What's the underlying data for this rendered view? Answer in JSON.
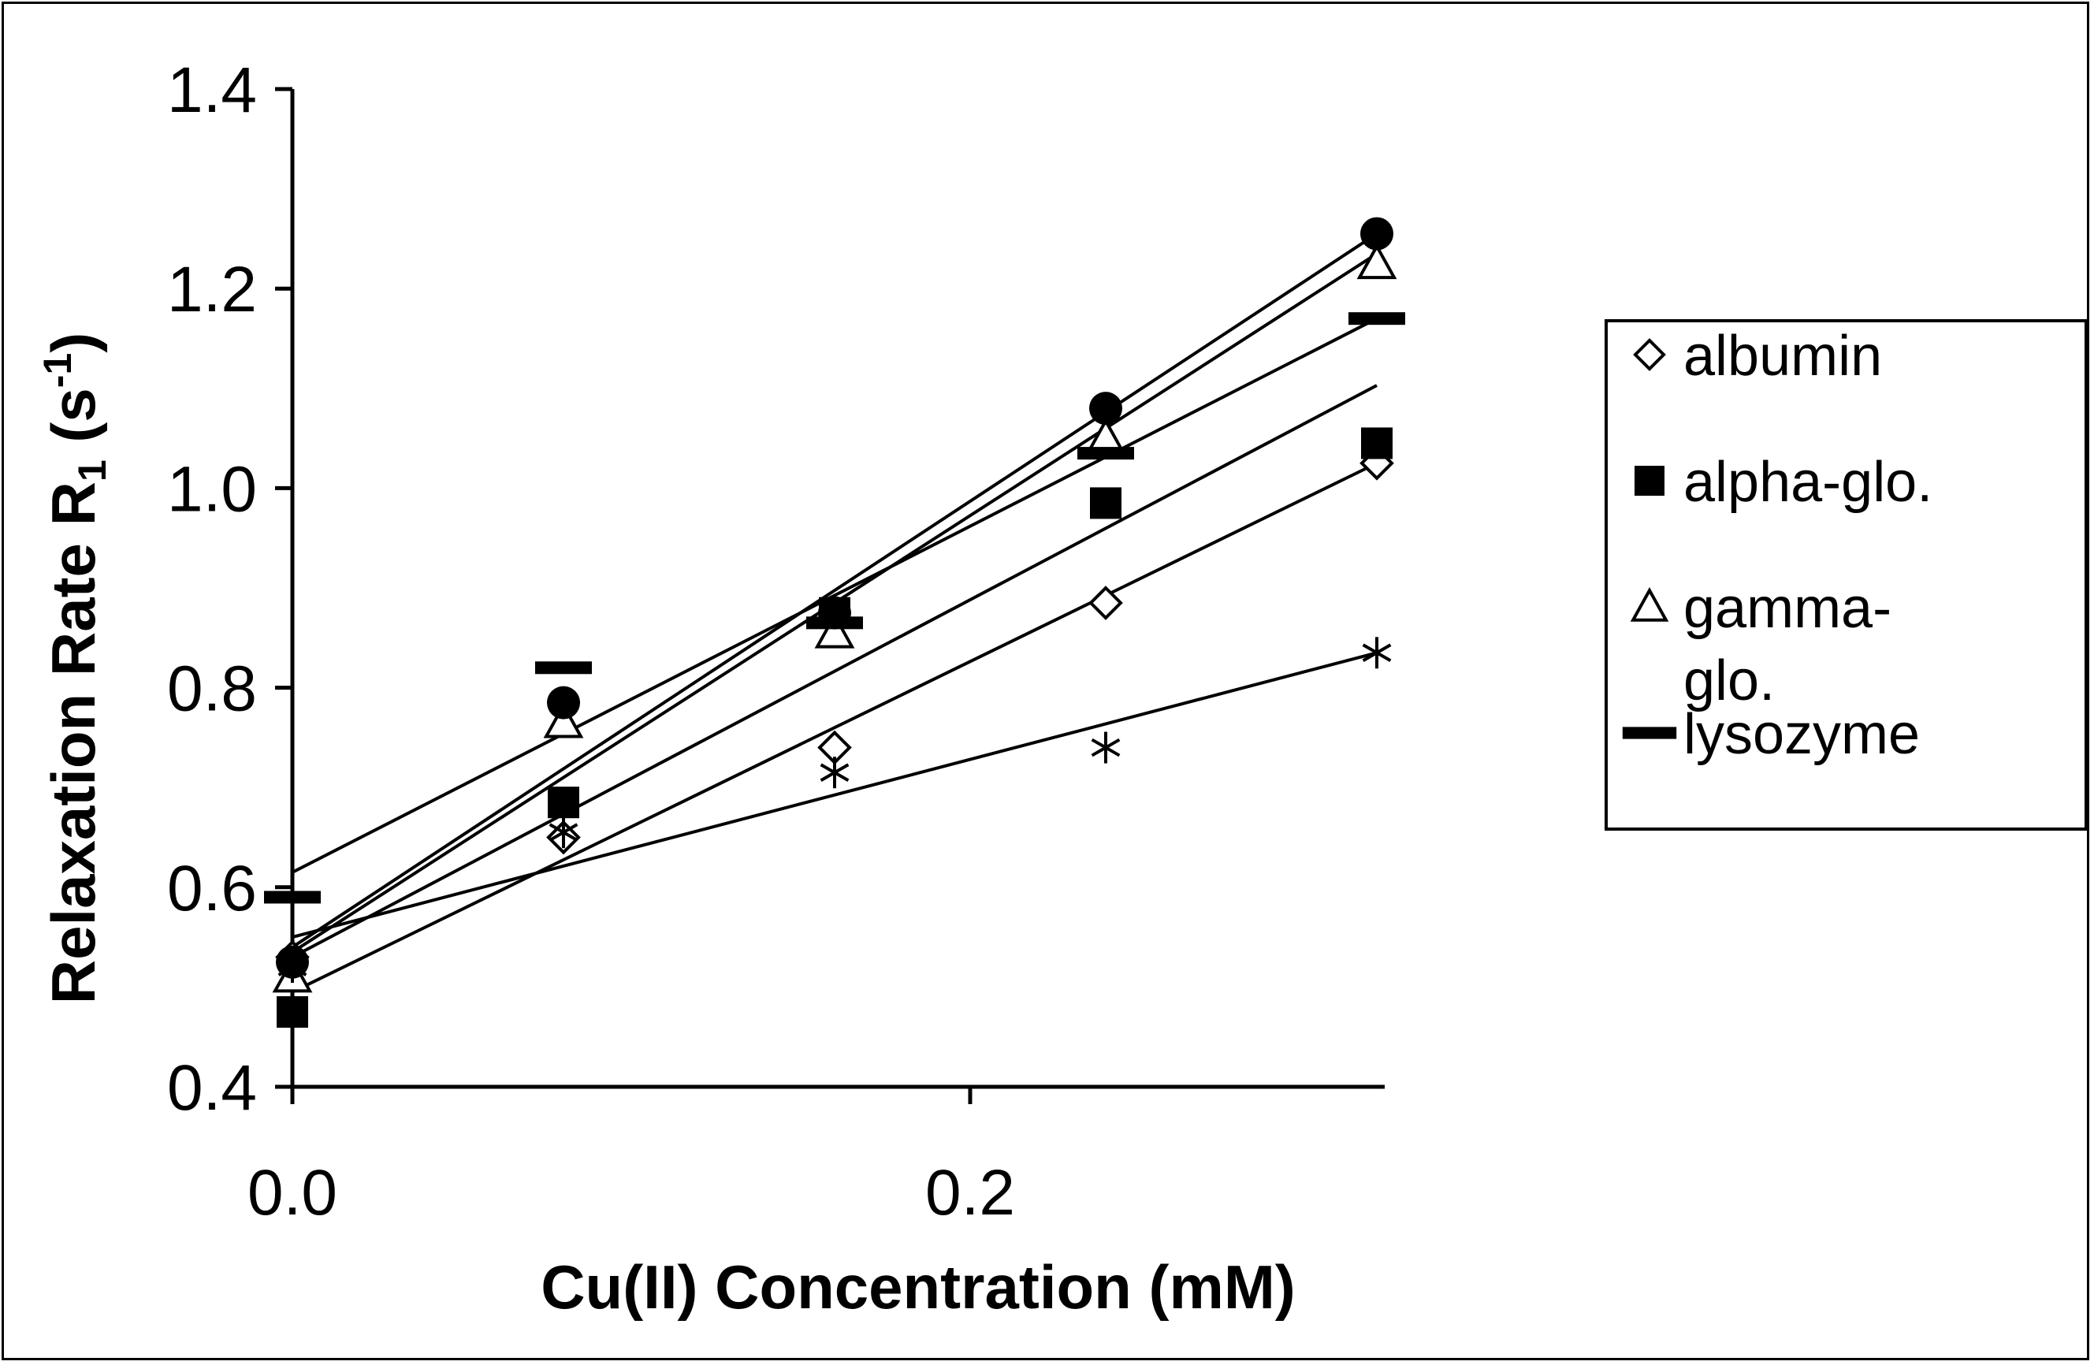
{
  "chart_data": {
    "type": "scatter",
    "x": [
      0.0,
      0.08,
      0.16,
      0.24,
      0.32
    ],
    "xlim": [
      0.0,
      0.32
    ],
    "ylim": [
      0.4,
      1.4
    ],
    "x_ticks": [
      0.0,
      0.2
    ],
    "x_tick_labels": [
      "0.0",
      "0.2"
    ],
    "y_ticks": [
      0.4,
      0.6,
      0.8,
      1.0,
      1.2,
      1.4
    ],
    "y_tick_labels": [
      "0.4",
      "0.6",
      "0.8",
      "1.0",
      "1.2",
      "1.4"
    ],
    "xlabel": "Cu(II) Concentration (mM)",
    "ylabel_main": "Relaxation Rate R",
    "ylabel_sub": "1",
    "ylabel_unit_open": " (s",
    "ylabel_sup": "-1",
    "ylabel_unit_close": ")",
    "legend_position": "right",
    "series": [
      {
        "name": "albumin",
        "legend_label": [
          "albumin"
        ],
        "marker": "diamond-open",
        "values": [
          0.53,
          0.65,
          0.74,
          0.885,
          1.025
        ],
        "fit": [
          0.495,
          1.025
        ]
      },
      {
        "name": "alpha-glo.",
        "legend_label": [
          "alpha-glo."
        ],
        "marker": "square-filled",
        "values": [
          0.475,
          0.685,
          0.875,
          0.985,
          1.045
        ],
        "fit": [
          0.53,
          1.103
        ]
      },
      {
        "name": "gamma-glo.",
        "legend_label": [
          "gamma-",
          "glo."
        ],
        "marker": "triangle-open",
        "values": [
          0.51,
          0.765,
          0.855,
          1.05,
          1.225
        ],
        "fit": [
          0.535,
          1.235
        ]
      },
      {
        "name": "lysozyme",
        "legend_label": [
          "lysozyme"
        ],
        "marker": "dash-filled",
        "values": [
          0.59,
          0.82,
          0.865,
          1.035,
          1.17
        ],
        "fit": [
          0.615,
          1.17
        ]
      },
      {
        "name": "circle series (unlabeled)",
        "legend_label": [],
        "marker": "circle-filled",
        "values": [
          0.525,
          0.785,
          0.875,
          1.08,
          1.255
        ],
        "fit": [
          0.54,
          1.255
        ]
      },
      {
        "name": "star series (unlabeled)",
        "legend_label": [],
        "marker": "star",
        "values": [
          0.52,
          0.655,
          0.715,
          0.74,
          0.835
        ],
        "fit": [
          0.55,
          0.835
        ]
      }
    ]
  }
}
